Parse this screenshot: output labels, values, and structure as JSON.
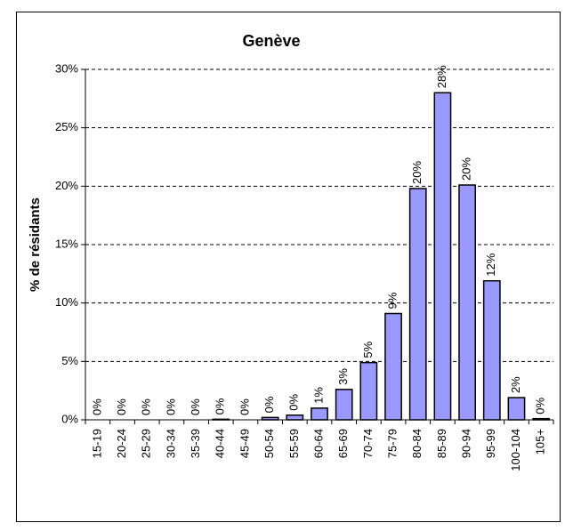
{
  "chart_data": {
    "type": "bar",
    "title": "Genève",
    "ylabel": "% de résidants",
    "categories": [
      "15-19",
      "20-24",
      "25-29",
      "30-34",
      "35-39",
      "40-44",
      "45-49",
      "50-54",
      "55-59",
      "60-64",
      "65-69",
      "70-74",
      "75-79",
      "80-84",
      "85-89",
      "90-94",
      "95-99",
      "100-104",
      "105+"
    ],
    "values": [
      0,
      0,
      0,
      0,
      0,
      0.05,
      0,
      0.2,
      0.4,
      1.0,
      2.6,
      4.9,
      9.1,
      19.8,
      28.0,
      20.1,
      11.9,
      1.9,
      0.1
    ],
    "value_labels": [
      "0%",
      "0%",
      "0%",
      "0%",
      "0%",
      "0%",
      "0%",
      "0%",
      "0%",
      "1%",
      "3%",
      "5%",
      "9%",
      "20%",
      "28%",
      "20%",
      "12%",
      "2%",
      "0%"
    ],
    "color": "#9999ff",
    "ylim": [
      0,
      30
    ],
    "yticks": [
      {
        "value": 0,
        "label": "0%"
      },
      {
        "value": 5,
        "label": "5%"
      },
      {
        "value": 10,
        "label": "10%"
      },
      {
        "value": 15,
        "label": "15%"
      },
      {
        "value": 20,
        "label": "20%"
      },
      {
        "value": 25,
        "label": "25%"
      },
      {
        "value": 30,
        "label": "30%"
      }
    ],
    "grid": true
  }
}
